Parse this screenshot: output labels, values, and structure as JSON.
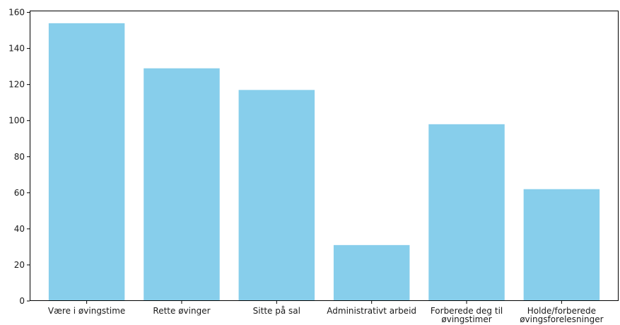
{
  "chart_data": {
    "type": "bar",
    "categories": [
      [
        "Være i øvingstime"
      ],
      [
        "Rette øvinger"
      ],
      [
        "Sitte på sal"
      ],
      [
        "Administrativt arbeid"
      ],
      [
        "Forberede deg til",
        "øvingstimer"
      ],
      [
        "Holde/forberede",
        "øvingsforelesninger"
      ]
    ],
    "values": [
      154,
      129,
      117,
      31,
      98,
      62
    ],
    "ylim": [
      0,
      161
    ],
    "yticks": [
      0,
      20,
      40,
      60,
      80,
      100,
      120,
      140,
      160
    ],
    "bar_color": "#87ceeb",
    "grid": false,
    "title": "",
    "xlabel": "",
    "ylabel": ""
  }
}
